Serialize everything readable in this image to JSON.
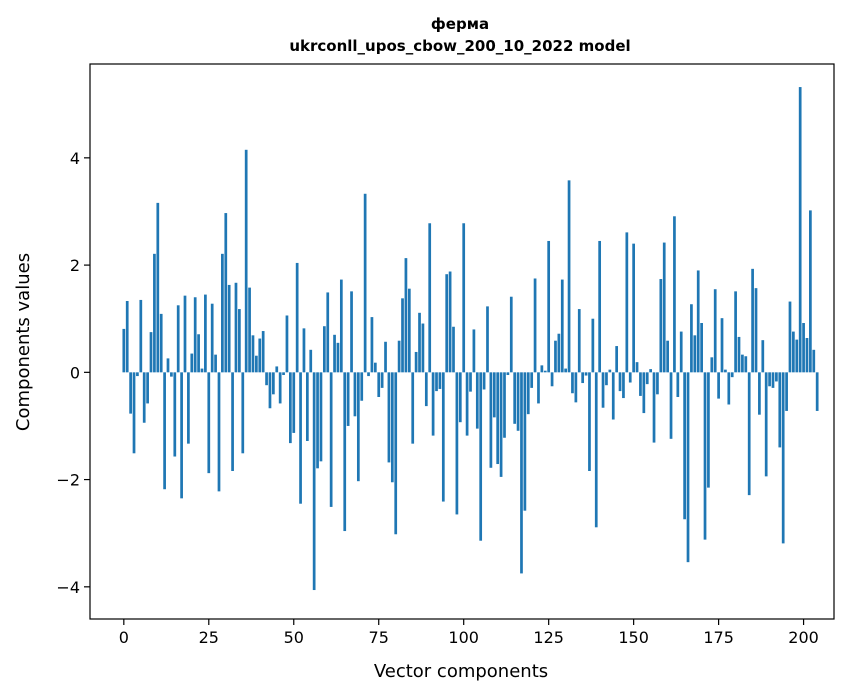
{
  "chart_data": {
    "type": "bar",
    "title": "ферма",
    "subtitle": "ukrconll_upos_cbow_200_10_2022 model",
    "xlabel": "Vector components",
    "ylabel": "Components values",
    "xlim": [
      -9.95,
      208.95
    ],
    "ylim": [
      -4.6,
      5.75
    ],
    "xticks": [
      0,
      25,
      50,
      75,
      100,
      125,
      150,
      175,
      200
    ],
    "xtick_labels": [
      "0",
      "25",
      "50",
      "75",
      "100",
      "125",
      "150",
      "175",
      "200"
    ],
    "yticks": [
      -4,
      -2,
      0,
      2,
      4
    ],
    "ytick_labels": [
      "−4",
      "−2",
      "0",
      "2",
      "4"
    ],
    "grid": false,
    "color": "#1f77b4",
    "values": [
      0.81,
      1.33,
      -0.77,
      -1.51,
      -0.07,
      1.35,
      -0.94,
      -0.58,
      0.75,
      2.21,
      3.16,
      1.09,
      -2.18,
      0.26,
      -0.08,
      -1.57,
      1.25,
      -2.35,
      1.43,
      -1.33,
      0.35,
      1.4,
      0.71,
      0.07,
      1.45,
      -1.88,
      1.28,
      0.33,
      -2.22,
      2.21,
      2.97,
      1.63,
      -1.84,
      1.67,
      1.18,
      -1.51,
      4.15,
      1.58,
      0.69,
      0.31,
      0.63,
      0.77,
      -0.24,
      -0.67,
      -0.41,
      0.11,
      -0.58,
      -0.05,
      1.06,
      -1.32,
      -1.13,
      2.04,
      -2.45,
      0.82,
      -1.28,
      0.42,
      -4.06,
      -1.79,
      -1.66,
      0.86,
      1.49,
      -2.51,
      0.7,
      0.55,
      1.73,
      -2.96,
      -1.0,
      1.51,
      -0.82,
      -2.03,
      -0.53,
      3.33,
      -0.07,
      1.03,
      0.18,
      -0.46,
      -0.29,
      0.57,
      -1.68,
      -2.05,
      -3.02,
      0.59,
      1.38,
      2.13,
      1.56,
      -1.33,
      0.38,
      1.11,
      0.91,
      -0.63,
      2.78,
      -1.18,
      -0.35,
      -0.31,
      -2.41,
      1.83,
      1.88,
      0.85,
      -2.65,
      -0.93,
      2.78,
      -1.18,
      -0.36,
      0.8,
      -1.05,
      -3.14,
      -0.32,
      1.23,
      -1.78,
      -0.84,
      -1.71,
      -1.95,
      -1.22,
      -0.05,
      1.41,
      -0.96,
      -1.09,
      -3.75,
      -2.58,
      -0.78,
      -0.29,
      1.75,
      -0.58,
      0.13,
      0.03,
      2.45,
      -0.26,
      0.59,
      0.72,
      1.73,
      0.07,
      3.58,
      -0.39,
      -0.56,
      1.18,
      -0.2,
      -0.06,
      -1.84,
      1.0,
      -2.89,
      2.45,
      -0.66,
      -0.24,
      0.05,
      -0.88,
      0.49,
      -0.35,
      -0.48,
      2.61,
      -0.19,
      2.4,
      0.19,
      -0.44,
      -0.76,
      -0.22,
      0.06,
      -1.31,
      -0.41,
      1.74,
      2.42,
      0.59,
      -1.24,
      2.91,
      -0.46,
      0.76,
      -2.74,
      -3.54,
      1.27,
      0.69,
      1.9,
      0.92,
      -3.12,
      -2.15,
      0.28,
      1.55,
      -0.49,
      1.01,
      0.05,
      -0.6,
      -0.09,
      1.51,
      0.66,
      0.33,
      0.3,
      -2.29,
      1.93,
      1.57,
      -0.79,
      0.6,
      -1.94,
      -0.26,
      -0.29,
      -0.17,
      -1.4,
      -3.19,
      -0.72,
      1.32,
      0.76,
      0.61,
      5.32,
      0.92,
      0.64,
      3.02,
      0.42,
      -0.72
    ]
  }
}
